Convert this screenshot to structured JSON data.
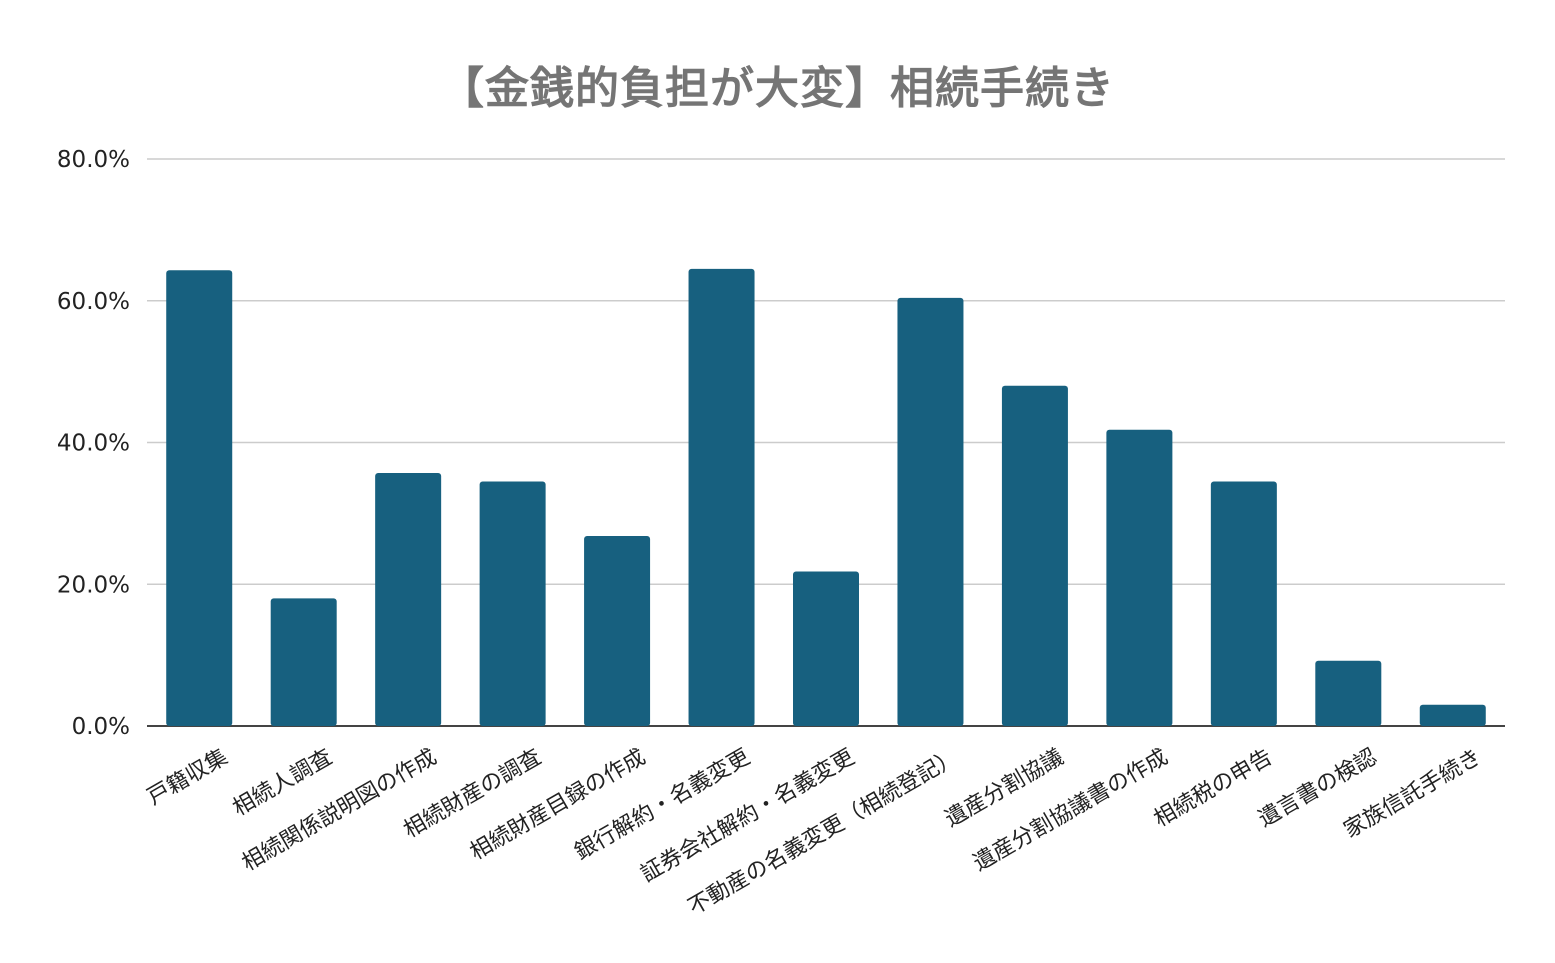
{
  "chart_data": {
    "type": "bar",
    "title": "【金銭的負担が大変】相続手続き",
    "xlabel": "",
    "ylabel": "",
    "ylim": [
      0,
      80
    ],
    "yticks": [
      "0.0%",
      "20.0%",
      "40.0%",
      "60.0%",
      "80.0%"
    ],
    "ytick_values": [
      0,
      20,
      40,
      60,
      80
    ],
    "grid": true,
    "legend": "none",
    "bar_color": "#17607f",
    "categories": [
      "戸籍収集",
      "相続人調査",
      "相続関係説明図の作成",
      "相続財産の調査",
      "相続財産目録の作成",
      "銀行解約・名義変更",
      "証券会社解約・名義変更",
      "不動産の名義変更（相続登記）",
      "遺産分割協議",
      "遺産分割協議書の作成",
      "相続税の申告",
      "遺言書の検認",
      "家族信託手続き"
    ],
    "values": [
      64.3,
      18.0,
      35.7,
      34.5,
      26.8,
      64.5,
      21.8,
      60.4,
      48.0,
      41.8,
      34.5,
      9.2,
      3.0
    ]
  }
}
